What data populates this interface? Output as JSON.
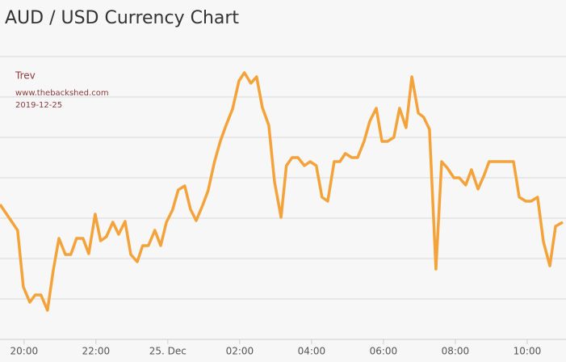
{
  "chart_data": {
    "type": "line",
    "title": "AUD / USD Currency Chart",
    "annotations": [
      "Trev",
      "www.thebackshed.com",
      "2019-12-25"
    ],
    "x": [
      -0.67,
      -0.18,
      -0.02,
      0.16,
      0.31,
      0.47,
      0.65,
      0.81,
      0.97,
      1.15,
      1.3,
      1.46,
      1.64,
      1.8,
      1.98,
      2.13,
      2.29,
      2.47,
      2.63,
      2.81,
      2.97,
      3.15,
      3.3,
      3.46,
      3.64,
      3.8,
      3.96,
      4.13,
      4.29,
      4.47,
      4.63,
      4.79,
      4.97,
      5.12,
      5.3,
      5.46,
      5.62,
      5.8,
      5.98,
      6.13,
      6.31,
      6.47,
      6.63,
      6.81,
      6.97,
      7.15,
      7.3,
      7.46,
      7.62,
      7.8,
      7.96,
      8.13,
      8.29,
      8.45,
      8.63,
      8.79,
      8.94,
      9.12,
      9.28,
      9.46,
      9.62,
      9.8,
      9.96,
      10.11,
      10.29,
      10.45,
      10.63,
      10.79,
      10.97,
      11.12,
      11.28,
      11.46,
      11.62,
      11.78,
      11.96,
      12.11,
      12.29,
      12.45,
      12.63,
      12.79,
      12.94,
      13.1,
      13.28,
      13.44,
      13.62,
      13.78,
      13.96,
      14.11,
      14.29,
      14.45,
      14.63,
      14.79,
      14.99
    ],
    "series": [
      {
        "color": "#f4a23a",
        "values": [
          3.34,
          2.7,
          1.3,
          0.92,
          1.1,
          1.1,
          0.72,
          1.7,
          2.5,
          2.1,
          2.1,
          2.5,
          2.5,
          2.12,
          3.1,
          2.44,
          2.54,
          2.9,
          2.6,
          2.92,
          2.1,
          1.92,
          2.32,
          2.32,
          2.7,
          2.32,
          2.9,
          3.2,
          3.7,
          3.8,
          3.22,
          2.94,
          3.32,
          3.68,
          4.4,
          4.9,
          5.3,
          5.7,
          6.4,
          6.6,
          6.34,
          6.5,
          5.74,
          5.3,
          3.9,
          3.02,
          4.3,
          4.5,
          4.5,
          4.3,
          4.4,
          4.3,
          3.52,
          3.42,
          4.4,
          4.4,
          4.6,
          4.5,
          4.5,
          4.9,
          5.4,
          5.72,
          4.9,
          4.9,
          5.0,
          5.72,
          5.24,
          6.5,
          5.6,
          5.5,
          5.2,
          1.74,
          4.4,
          4.24,
          4.0,
          4.0,
          3.82,
          4.2,
          3.72,
          4.04,
          4.4,
          4.4,
          4.4,
          4.4,
          4.4,
          3.52,
          3.42,
          3.42,
          3.52,
          2.42,
          1.82,
          2.8,
          2.9
        ]
      }
    ],
    "xlim": [
      -0.67,
      15.08
    ],
    "xticks": [
      {
        "value": 0,
        "label": "20:00"
      },
      {
        "value": 2,
        "label": "22:00"
      },
      {
        "value": 4,
        "label": "25. Dec"
      },
      {
        "value": 6,
        "label": "02:00"
      },
      {
        "value": 8,
        "label": "04:00"
      },
      {
        "value": 10,
        "label": "06:00"
      },
      {
        "value": 12,
        "label": "08:00"
      },
      {
        "value": 14,
        "label": "10:00"
      }
    ],
    "ylim": [
      0,
      7
    ],
    "yticks": [
      1,
      2,
      3,
      4,
      5,
      6,
      7
    ],
    "grid": true
  }
}
